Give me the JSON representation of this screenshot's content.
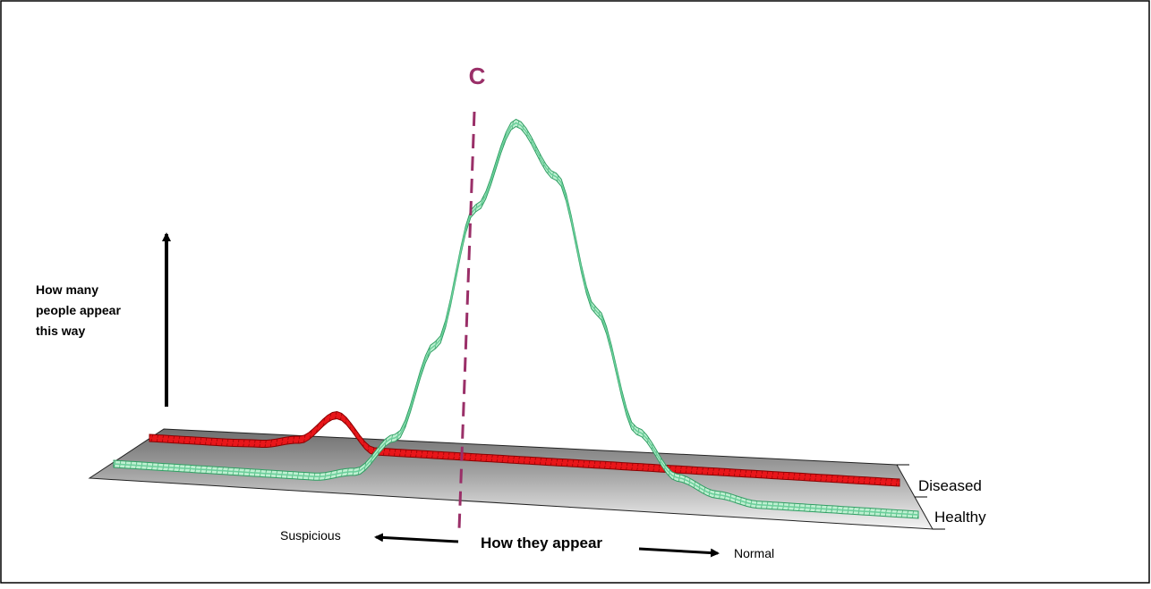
{
  "chart_data": {
    "type": "area",
    "title": "",
    "cutoff_label": "C",
    "ylabel_lines": [
      "How many",
      "people appear",
      "this way"
    ],
    "xlabel": "How they appear",
    "x_left_label": "Suspicious",
    "x_right_label": "Normal",
    "grid": false,
    "series": [
      {
        "name": "Diseased",
        "color": "#e8161a",
        "x": [
          0,
          0.05,
          0.1,
          0.15,
          0.2,
          0.25,
          0.3,
          0.35,
          0.4,
          0.45,
          0.5,
          0.55,
          0.6,
          0.65,
          0.7,
          0.75,
          0.8,
          0.85,
          0.9,
          0.95,
          1.0
        ],
        "values": [
          0.0,
          0.0,
          0.0,
          0.01,
          0.08,
          0.38,
          0.0,
          0.0,
          0.0,
          0.0,
          0.0,
          0.0,
          0.0,
          0.0,
          0.0,
          0.0,
          0.0,
          0.0,
          0.0,
          0.0,
          0.0
        ]
      },
      {
        "name": "Healthy",
        "color": "#69cf9a",
        "x": [
          0,
          0.05,
          0.1,
          0.15,
          0.2,
          0.25,
          0.3,
          0.35,
          0.4,
          0.45,
          0.5,
          0.55,
          0.6,
          0.65,
          0.7,
          0.75,
          0.8,
          0.85,
          0.9,
          0.95,
          1.0
        ],
        "values": [
          0.0,
          0.0,
          0.0,
          0.0,
          0.0,
          0.0,
          0.02,
          0.12,
          0.38,
          0.76,
          1.0,
          0.86,
          0.5,
          0.18,
          0.06,
          0.02,
          0.0,
          0.0,
          0.0,
          0.0,
          0.0
        ]
      }
    ],
    "cutoff_x": 0.36
  }
}
